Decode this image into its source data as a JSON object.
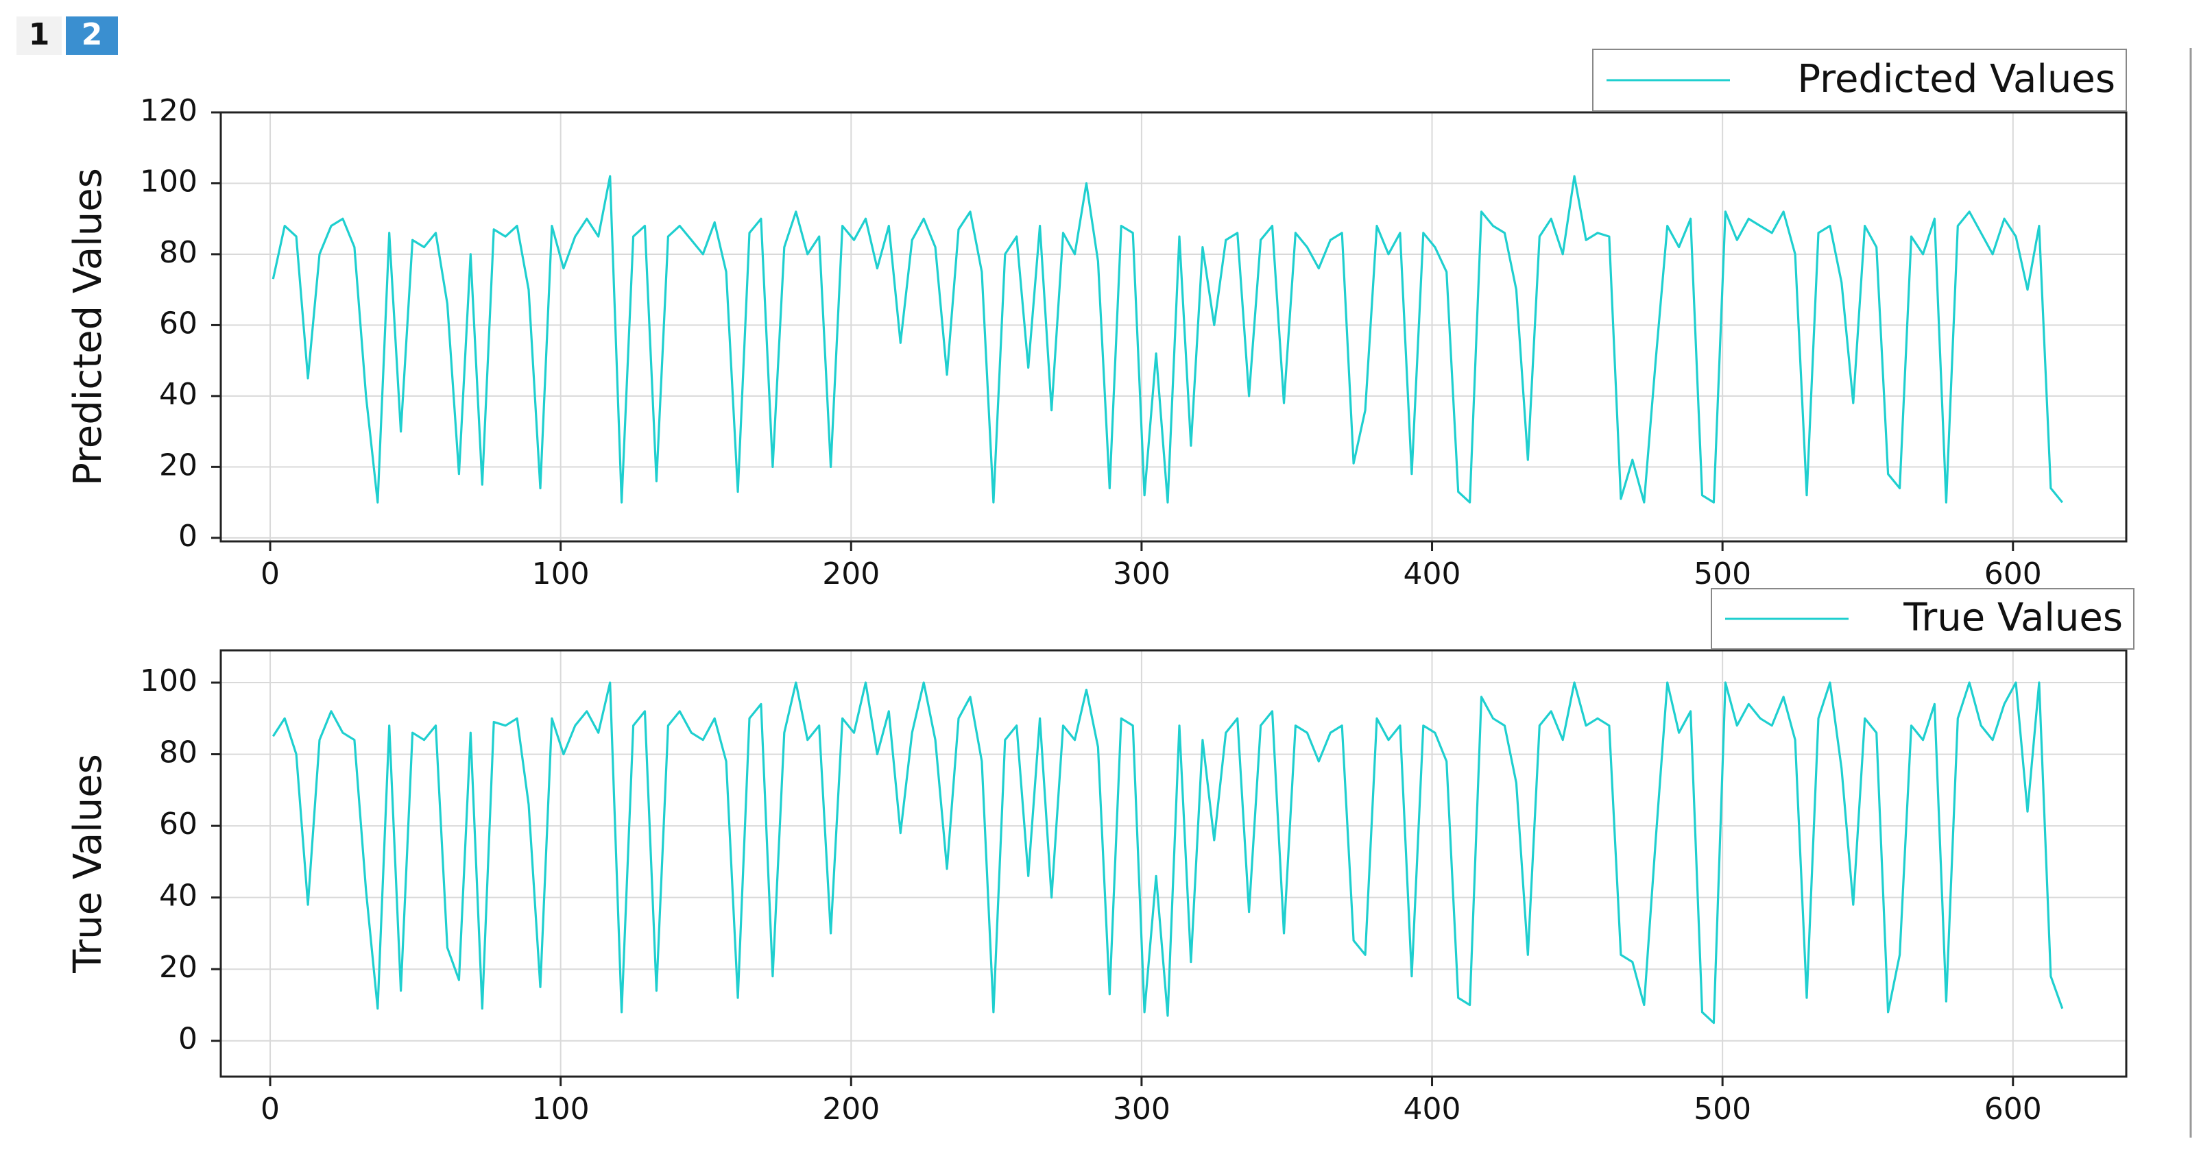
{
  "tabs": [
    "1",
    "2"
  ],
  "chart_data": [
    {
      "type": "line",
      "y_label": "Predicted Values",
      "grid": true,
      "legend": "top-right",
      "xlim": [
        -17,
        639
      ],
      "ylim": [
        -1,
        120
      ],
      "xticks": [
        0,
        100,
        200,
        300,
        400,
        500,
        600
      ],
      "yticks": [
        0,
        20,
        40,
        60,
        80,
        100,
        120
      ],
      "x": [
        1,
        5,
        9,
        13,
        17,
        21,
        25,
        29,
        33,
        37,
        41,
        45,
        49,
        53,
        57,
        61,
        65,
        69,
        73,
        77,
        81,
        85,
        89,
        93,
        97,
        101,
        105,
        109,
        113,
        117,
        121,
        125,
        129,
        133,
        137,
        141,
        145,
        149,
        153,
        157,
        161,
        165,
        169,
        173,
        177,
        181,
        185,
        189,
        193,
        197,
        201,
        205,
        209,
        213,
        217,
        221,
        225,
        229,
        233,
        237,
        241,
        245,
        249,
        253,
        257,
        261,
        265,
        269,
        273,
        277,
        281,
        285,
        289,
        293,
        297,
        301,
        305,
        309,
        313,
        317,
        321,
        325,
        329,
        333,
        337,
        341,
        345,
        349,
        353,
        357,
        361,
        365,
        369,
        373,
        377,
        381,
        385,
        389,
        393,
        397,
        401,
        405,
        409,
        413,
        417,
        421,
        425,
        429,
        433,
        437,
        441,
        445,
        449,
        453,
        457,
        461,
        465,
        469,
        473,
        477,
        481,
        485,
        489,
        493,
        497,
        501,
        505,
        509,
        513,
        517,
        521,
        525,
        529,
        533,
        537,
        541,
        545,
        549,
        553,
        557,
        561,
        565,
        569,
        573,
        577,
        581,
        585,
        589,
        593,
        597,
        601,
        605,
        609,
        613,
        617
      ],
      "series": [
        {
          "name": "Predicted Values",
          "color": "#1fcfcf",
          "values": [
            73,
            88,
            85,
            45,
            80,
            88,
            90,
            82,
            40,
            10,
            86,
            30,
            84,
            82,
            86,
            66,
            18,
            80,
            15,
            87,
            85,
            88,
            70,
            14,
            88,
            76,
            85,
            90,
            85,
            102,
            10,
            85,
            88,
            16,
            85,
            88,
            84,
            80,
            89,
            75,
            13,
            86,
            90,
            20,
            82,
            92,
            80,
            85,
            20,
            88,
            84,
            90,
            76,
            88,
            55,
            84,
            90,
            82,
            46,
            87,
            92,
            75,
            10,
            80,
            85,
            48,
            88,
            36,
            86,
            80,
            100,
            78,
            14,
            88,
            86,
            12,
            52,
            10,
            85,
            26,
            82,
            60,
            84,
            86,
            40,
            84,
            88,
            38,
            86,
            82,
            76,
            84,
            86,
            21,
            36,
            88,
            80,
            86,
            18,
            86,
            82,
            75,
            13,
            10,
            92,
            88,
            86,
            70,
            22,
            85,
            90,
            80,
            102,
            84,
            86,
            85,
            11,
            22,
            10,
            50,
            88,
            82,
            90,
            12,
            10,
            92,
            84,
            90,
            88,
            86,
            92,
            80,
            12,
            86,
            88,
            72,
            38,
            88,
            82,
            18,
            14,
            85,
            80,
            90,
            10,
            88,
            92,
            86,
            80,
            90,
            85,
            70,
            88,
            14,
            10
          ]
        }
      ]
    },
    {
      "type": "line",
      "y_label": "True Values",
      "grid": true,
      "legend": "top-right",
      "xlim": [
        -17,
        639
      ],
      "ylim": [
        -10,
        109
      ],
      "xticks": [
        0,
        100,
        200,
        300,
        400,
        500,
        600
      ],
      "yticks": [
        0,
        20,
        40,
        60,
        80,
        100
      ],
      "x": [
        1,
        5,
        9,
        13,
        17,
        21,
        25,
        29,
        33,
        37,
        41,
        45,
        49,
        53,
        57,
        61,
        65,
        69,
        73,
        77,
        81,
        85,
        89,
        93,
        97,
        101,
        105,
        109,
        113,
        117,
        121,
        125,
        129,
        133,
        137,
        141,
        145,
        149,
        153,
        157,
        161,
        165,
        169,
        173,
        177,
        181,
        185,
        189,
        193,
        197,
        201,
        205,
        209,
        213,
        217,
        221,
        225,
        229,
        233,
        237,
        241,
        245,
        249,
        253,
        257,
        261,
        265,
        269,
        273,
        277,
        281,
        285,
        289,
        293,
        297,
        301,
        305,
        309,
        313,
        317,
        321,
        325,
        329,
        333,
        337,
        341,
        345,
        349,
        353,
        357,
        361,
        365,
        369,
        373,
        377,
        381,
        385,
        389,
        393,
        397,
        401,
        405,
        409,
        413,
        417,
        421,
        425,
        429,
        433,
        437,
        441,
        445,
        449,
        453,
        457,
        461,
        465,
        469,
        473,
        477,
        481,
        485,
        489,
        493,
        497,
        501,
        505,
        509,
        513,
        517,
        521,
        525,
        529,
        533,
        537,
        541,
        545,
        549,
        553,
        557,
        561,
        565,
        569,
        573,
        577,
        581,
        585,
        589,
        593,
        597,
        601,
        605,
        609,
        613,
        617
      ],
      "series": [
        {
          "name": "True Values",
          "color": "#1fcfcf",
          "values": [
            85,
            90,
            80,
            38,
            84,
            92,
            86,
            84,
            42,
            9,
            88,
            14,
            86,
            84,
            88,
            26,
            17,
            86,
            9,
            89,
            88,
            90,
            66,
            15,
            90,
            80,
            88,
            92,
            86,
            100,
            8,
            88,
            92,
            14,
            88,
            92,
            86,
            84,
            90,
            78,
            12,
            90,
            94,
            18,
            86,
            100,
            84,
            88,
            30,
            90,
            86,
            100,
            80,
            92,
            58,
            86,
            100,
            84,
            48,
            90,
            96,
            78,
            8,
            84,
            88,
            46,
            90,
            40,
            88,
            84,
            98,
            82,
            13,
            90,
            88,
            8,
            46,
            7,
            88,
            22,
            84,
            56,
            86,
            90,
            36,
            88,
            92,
            30,
            88,
            86,
            78,
            86,
            88,
            28,
            24,
            90,
            84,
            88,
            18,
            88,
            86,
            78,
            12,
            10,
            96,
            90,
            88,
            72,
            24,
            88,
            92,
            84,
            100,
            88,
            90,
            88,
            24,
            22,
            10,
            56,
            100,
            86,
            92,
            8,
            5,
            100,
            88,
            94,
            90,
            88,
            96,
            84,
            12,
            90,
            100,
            76,
            38,
            90,
            86,
            8,
            24,
            88,
            84,
            94,
            11,
            90,
            100,
            88,
            84,
            94,
            100,
            64,
            100,
            18,
            9
          ]
        }
      ]
    }
  ]
}
